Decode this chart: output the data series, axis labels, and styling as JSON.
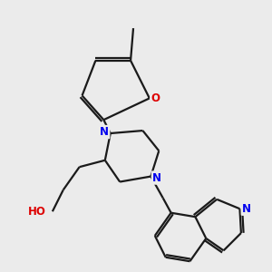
{
  "background_color": "#ebebeb",
  "bond_color": "#1a1a1a",
  "N_color": "#0000ee",
  "O_color": "#dd0000",
  "font_size": 8.5,
  "line_width": 1.6,
  "figsize": [
    3.0,
    3.0
  ],
  "dpi": 100,
  "xlim": [
    0,
    10
  ],
  "ylim": [
    0,
    10
  ]
}
